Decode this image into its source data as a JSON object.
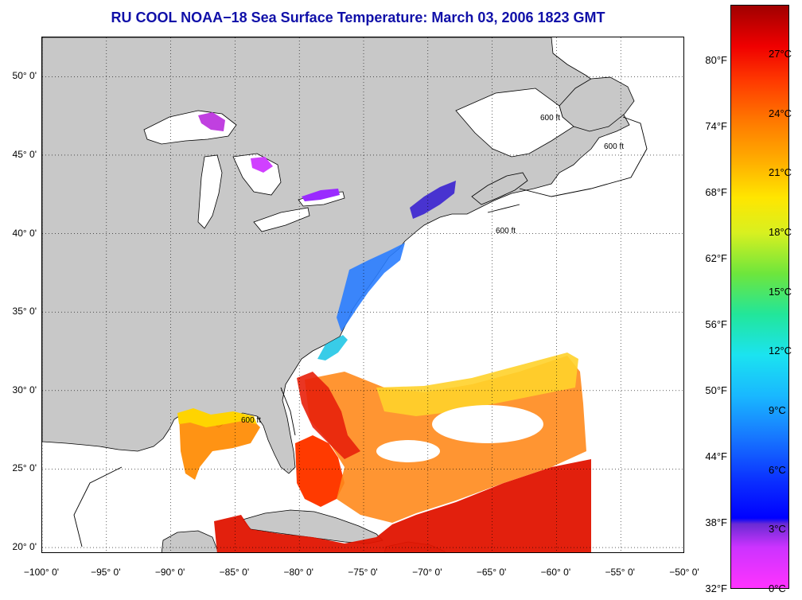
{
  "title": "RU COOL  NOAA−18  Sea Surface Temperature:  March 03, 2006 1823 GMT",
  "map": {
    "lon_range": [
      -100,
      -50
    ],
    "lat_range": [
      19.6,
      52.5
    ],
    "lat_labels": [
      "20° 0'",
      "25° 0'",
      "30° 0'",
      "35° 0'",
      "40° 0'",
      "45° 0'",
      "50° 0'"
    ],
    "lat_values": [
      20,
      25,
      30,
      35,
      40,
      45,
      50
    ],
    "lon_labels": [
      "−100° 0'",
      "−95° 0'",
      "−90° 0'",
      "−85° 0'",
      "−80° 0'",
      "−75° 0'",
      "−70° 0'",
      "−65° 0'",
      "−60° 0'",
      "−55° 0'",
      "−50° 0'"
    ],
    "lon_values": [
      -100,
      -95,
      -90,
      -85,
      -80,
      -75,
      -70,
      -65,
      -60,
      -55,
      -50
    ],
    "isobath_label": "600 ft",
    "land_color": "#c8c8c8",
    "ocean_color": "#ffffff"
  },
  "colorbar": {
    "fahrenheit": [
      {
        "label": "32°F",
        "value": 32
      },
      {
        "label": "38°F",
        "value": 38
      },
      {
        "label": "44°F",
        "value": 44
      },
      {
        "label": "50°F",
        "value": 50
      },
      {
        "label": "56°F",
        "value": 56
      },
      {
        "label": "62°F",
        "value": 62
      },
      {
        "label": "68°F",
        "value": 68
      },
      {
        "label": "74°F",
        "value": 74
      },
      {
        "label": "80°F",
        "value": 80
      }
    ],
    "celsius": [
      {
        "label": "0°C",
        "value": 0
      },
      {
        "label": "3°C",
        "value": 3
      },
      {
        "label": "6°C",
        "value": 6
      },
      {
        "label": "9°C",
        "value": 9
      },
      {
        "label": "12°C",
        "value": 12
      },
      {
        "label": "15°C",
        "value": 15
      },
      {
        "label": "18°C",
        "value": 18
      },
      {
        "label": "21°C",
        "value": 21
      },
      {
        "label": "24°C",
        "value": 24
      },
      {
        "label": "27°C",
        "value": 27
      }
    ],
    "min_c": 0,
    "max_c": 29.5
  }
}
